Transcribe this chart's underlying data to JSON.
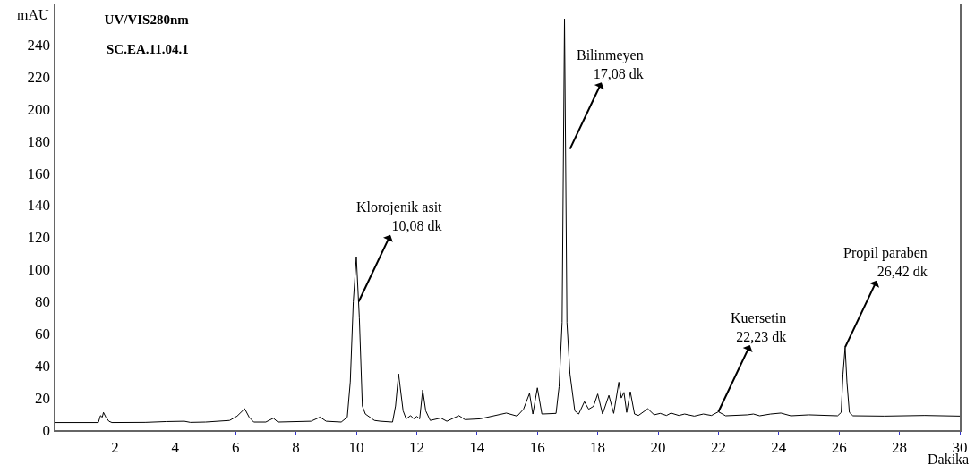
{
  "chart_data": {
    "type": "line",
    "title": "UV/VIS280nm",
    "subtitle": "SC.EA.11.04.1",
    "xlabel": "Dakika",
    "ylabel": "mAU",
    "x": [
      0,
      1.45,
      1.52,
      1.58,
      1.62,
      1.7,
      1.8,
      1.9,
      3.0,
      3.7,
      4.3,
      4.5,
      5.0,
      5.8,
      6.05,
      6.3,
      6.45,
      6.6,
      7.0,
      7.25,
      7.4,
      8.5,
      8.8,
      9.0,
      9.5,
      9.7,
      9.8,
      9.9,
      10.0,
      10.1,
      10.2,
      10.3,
      10.6,
      10.8,
      11.2,
      11.3,
      11.4,
      11.55,
      11.65,
      11.8,
      11.9,
      12.0,
      12.1,
      12.2,
      12.3,
      12.45,
      12.8,
      13.0,
      13.4,
      13.6,
      14.1,
      14.97,
      15.33,
      15.54,
      15.74,
      15.85,
      16.0,
      16.15,
      16.62,
      16.72,
      16.82,
      16.9,
      16.98,
      17.08,
      17.24,
      17.37,
      17.56,
      17.7,
      17.86,
      18.0,
      18.16,
      18.37,
      18.53,
      18.7,
      18.78,
      18.87,
      18.96,
      19.08,
      19.22,
      19.35,
      19.66,
      19.87,
      20.07,
      20.28,
      20.43,
      20.69,
      20.88,
      21.2,
      21.5,
      21.77,
      22.0,
      22.24,
      22.96,
      23.16,
      23.37,
      23.73,
      24.07,
      24.4,
      25.0,
      25.95,
      26.07,
      26.13,
      26.2,
      26.26,
      26.34,
      26.46,
      27.5,
      28.84,
      30
    ],
    "values": [
      4.7,
      4.7,
      9,
      8,
      11,
      8,
      5.5,
      4.7,
      4.8,
      5.3,
      5.5,
      4.8,
      5,
      6,
      8.7,
      13.3,
      8,
      5,
      5,
      7.4,
      5,
      5.5,
      8.1,
      5.5,
      5,
      8,
      30,
      80,
      108,
      70,
      15,
      10,
      6,
      5.5,
      5,
      15,
      35,
      12,
      7,
      9,
      7,
      8.5,
      7,
      25,
      12,
      6,
      7.5,
      5.5,
      9,
      6.5,
      7,
      10.6,
      8.7,
      13,
      22.9,
      10,
      26.3,
      10,
      10.4,
      27,
      67,
      256,
      67,
      35,
      12,
      10,
      17.7,
      13,
      14.8,
      22.5,
      10,
      21.6,
      10.4,
      29.8,
      20,
      23.5,
      11,
      23.9,
      10,
      9.1,
      13.3,
      9.5,
      10.4,
      9.1,
      10.6,
      9.1,
      10,
      8.7,
      10,
      9.1,
      11.4,
      8.9,
      9.5,
      10,
      8.9,
      10,
      10.6,
      8.9,
      9.5,
      8.9,
      11,
      35,
      51.6,
      30,
      11,
      8.9,
      8.7,
      9.1,
      8.7
    ],
    "color": "#000000",
    "line_style": "solid",
    "marker": "none",
    "xlim": [
      0,
      30
    ],
    "xticks": [
      2,
      4,
      6,
      8,
      10,
      12,
      14,
      16,
      18,
      20,
      22,
      24,
      26,
      28,
      30
    ],
    "ylim": [
      0,
      265
    ],
    "yticks": [
      0,
      20,
      40,
      60,
      80,
      100,
      120,
      140,
      160,
      180,
      200,
      220,
      240
    ],
    "grid": false,
    "annotations": [
      {
        "text": "Klorojenik asit\n10,08 dk",
        "x": 10.08,
        "y": 80
      },
      {
        "text": "Bilinmeyen\n17,08 dk",
        "x": 17.08,
        "y": 175
      },
      {
        "text": "Kuersetin\n22,23 dk",
        "x": 22.0,
        "y": 11.4
      },
      {
        "text": "Propil paraben\n26,42 dk",
        "x": 26.2,
        "y": 51.6
      }
    ]
  }
}
